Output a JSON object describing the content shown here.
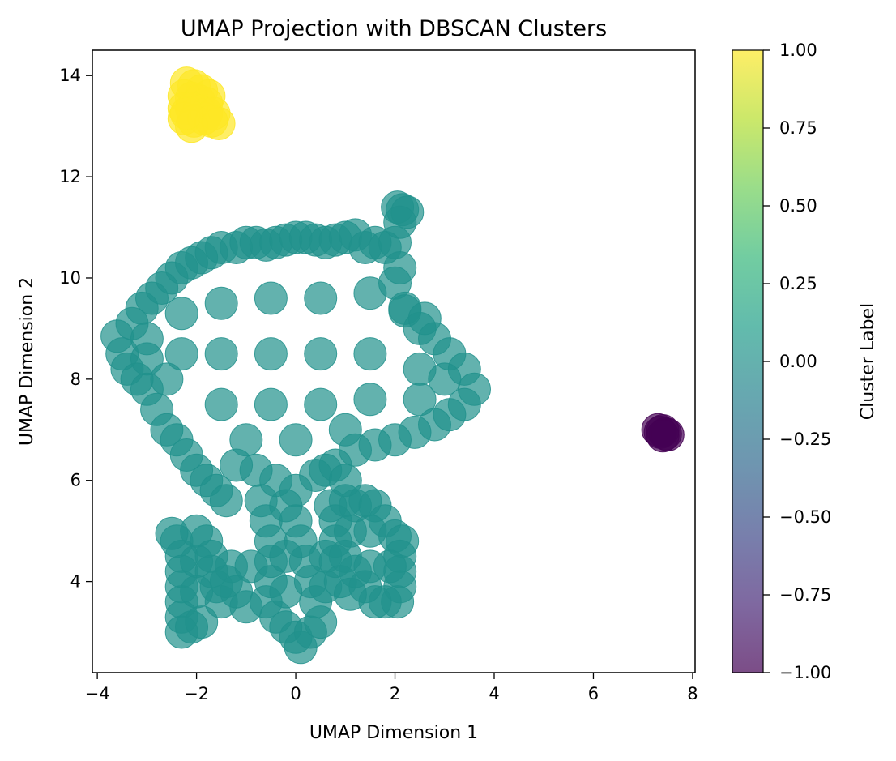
{
  "chart_data": {
    "type": "scatter",
    "title": "UMAP Projection with DBSCAN Clusters",
    "xlabel": "UMAP Dimension 1",
    "ylabel": "UMAP Dimension 2",
    "xlim": [
      -4.1,
      8.05
    ],
    "ylim": [
      2.2,
      14.5
    ],
    "xticks": [
      -4,
      -2,
      0,
      2,
      4,
      6,
      8
    ],
    "yticks": [
      4,
      6,
      8,
      10,
      12,
      14
    ],
    "grid": false,
    "legend": "none",
    "series": [
      {
        "cluster": 1,
        "color": "#fde725",
        "points": [
          [
            -2.2,
            13.85
          ],
          [
            -2.05,
            13.8
          ],
          [
            -1.9,
            13.7
          ],
          [
            -1.75,
            13.6
          ],
          [
            -2.25,
            13.6
          ],
          [
            -2.1,
            13.55
          ],
          [
            -1.95,
            13.5
          ],
          [
            -1.8,
            13.45
          ],
          [
            -2.25,
            13.35
          ],
          [
            -2.1,
            13.35
          ],
          [
            -1.95,
            13.3
          ],
          [
            -1.8,
            13.25
          ],
          [
            -2.25,
            13.15
          ],
          [
            -2.05,
            13.1
          ],
          [
            -1.85,
            13.15
          ],
          [
            -1.65,
            13.25
          ],
          [
            -1.55,
            13.05
          ],
          [
            -2.1,
            13.0
          ],
          [
            -1.7,
            13.1
          ],
          [
            -2.2,
            13.25
          ]
        ]
      },
      {
        "cluster": 0,
        "color": "#21918c",
        "points": [
          [
            -3.6,
            8.85
          ],
          [
            -3.5,
            8.5
          ],
          [
            -3.4,
            8.2
          ],
          [
            -3.3,
            9.1
          ],
          [
            -3.2,
            8.0
          ],
          [
            -3.1,
            9.4
          ],
          [
            -3.0,
            8.8
          ],
          [
            -3.0,
            7.8
          ],
          [
            -2.9,
            9.6
          ],
          [
            -2.8,
            7.4
          ],
          [
            -2.7,
            9.8
          ],
          [
            -2.6,
            7.0
          ],
          [
            -2.5,
            10.0
          ],
          [
            -2.4,
            6.8
          ],
          [
            -2.3,
            10.2
          ],
          [
            -2.2,
            6.5
          ],
          [
            -2.1,
            10.3
          ],
          [
            -2.0,
            6.2
          ],
          [
            -1.9,
            10.4
          ],
          [
            -1.8,
            6.0
          ],
          [
            -1.7,
            10.5
          ],
          [
            -1.6,
            5.8
          ],
          [
            -1.5,
            10.6
          ],
          [
            -1.4,
            5.6
          ],
          [
            -1.2,
            10.6
          ],
          [
            -1.0,
            10.7
          ],
          [
            -0.8,
            10.7
          ],
          [
            -0.6,
            10.65
          ],
          [
            -0.4,
            10.7
          ],
          [
            -0.2,
            10.75
          ],
          [
            0.0,
            10.8
          ],
          [
            0.2,
            10.8
          ],
          [
            0.4,
            10.75
          ],
          [
            0.6,
            10.7
          ],
          [
            0.8,
            10.75
          ],
          [
            1.0,
            10.8
          ],
          [
            1.2,
            10.85
          ],
          [
            1.4,
            10.6
          ],
          [
            1.6,
            10.7
          ],
          [
            1.8,
            10.6
          ],
          [
            2.0,
            10.7
          ],
          [
            2.1,
            10.2
          ],
          [
            2.0,
            9.9
          ],
          [
            2.2,
            9.4
          ],
          [
            2.5,
            9.0
          ],
          [
            2.8,
            8.8
          ],
          [
            3.1,
            8.5
          ],
          [
            3.4,
            8.2
          ],
          [
            3.6,
            7.8
          ],
          [
            3.4,
            7.5
          ],
          [
            3.1,
            7.3
          ],
          [
            2.8,
            7.1
          ],
          [
            2.4,
            6.95
          ],
          [
            2.0,
            6.8
          ],
          [
            1.6,
            6.7
          ],
          [
            1.2,
            6.6
          ],
          [
            0.8,
            6.3
          ],
          [
            0.4,
            6.1
          ],
          [
            0.0,
            5.8
          ],
          [
            -0.4,
            6.0
          ],
          [
            -0.8,
            6.2
          ],
          [
            -1.2,
            6.3
          ],
          [
            -2.3,
            8.5
          ],
          [
            -1.5,
            8.5
          ],
          [
            -0.5,
            8.5
          ],
          [
            0.5,
            8.5
          ],
          [
            1.5,
            8.5
          ],
          [
            2.5,
            8.2
          ],
          [
            -2.3,
            9.3
          ],
          [
            -1.5,
            9.5
          ],
          [
            -0.5,
            9.6
          ],
          [
            0.5,
            9.6
          ],
          [
            1.5,
            9.7
          ],
          [
            -1.5,
            7.5
          ],
          [
            -0.5,
            7.5
          ],
          [
            0.5,
            7.5
          ],
          [
            1.5,
            7.6
          ],
          [
            2.5,
            7.6
          ],
          [
            -1.0,
            6.8
          ],
          [
            0.0,
            6.8
          ],
          [
            1.0,
            7.0
          ],
          [
            -2.6,
            8.0
          ],
          [
            -3.0,
            8.4
          ],
          [
            3.0,
            8.0
          ],
          [
            2.05,
            11.4
          ],
          [
            2.15,
            11.35
          ],
          [
            2.25,
            11.3
          ],
          [
            2.1,
            11.1
          ],
          [
            2.2,
            9.35
          ],
          [
            2.6,
            9.2
          ],
          [
            -2.4,
            4.8
          ],
          [
            -2.3,
            4.5
          ],
          [
            -2.3,
            4.2
          ],
          [
            -2.3,
            3.9
          ],
          [
            -2.3,
            3.6
          ],
          [
            -2.3,
            3.3
          ],
          [
            -2.3,
            3.0
          ],
          [
            -2.1,
            3.1
          ],
          [
            -1.9,
            3.2
          ],
          [
            -1.8,
            4.8
          ],
          [
            -1.7,
            4.5
          ],
          [
            -1.7,
            4.2
          ],
          [
            -1.6,
            3.9
          ],
          [
            -1.5,
            3.6
          ],
          [
            -2.0,
            4.4
          ],
          [
            -2.0,
            3.8
          ],
          [
            -2.0,
            5.0
          ],
          [
            -2.5,
            4.95
          ],
          [
            -1.3,
            4.3
          ],
          [
            -1.2,
            3.8
          ],
          [
            -1.0,
            3.5
          ],
          [
            -0.9,
            4.3
          ],
          [
            -1.4,
            4.0
          ],
          [
            -0.7,
            5.6
          ],
          [
            -0.6,
            5.2
          ],
          [
            -0.5,
            4.8
          ],
          [
            -0.5,
            4.4
          ],
          [
            -0.5,
            4.0
          ],
          [
            -0.6,
            3.6
          ],
          [
            -0.4,
            3.3
          ],
          [
            -0.2,
            3.1
          ],
          [
            0.0,
            2.9
          ],
          [
            0.1,
            2.7
          ],
          [
            0.3,
            3.0
          ],
          [
            0.5,
            3.2
          ],
          [
            0.4,
            3.6
          ],
          [
            0.3,
            4.0
          ],
          [
            0.2,
            4.4
          ],
          [
            0.1,
            4.8
          ],
          [
            0.0,
            5.2
          ],
          [
            -0.2,
            5.5
          ],
          [
            -0.2,
            4.5
          ],
          [
            -0.2,
            3.8
          ],
          [
            0.6,
            4.5
          ],
          [
            0.6,
            3.9
          ],
          [
            0.7,
            5.5
          ],
          [
            0.8,
            5.2
          ],
          [
            0.8,
            4.8
          ],
          [
            0.8,
            4.4
          ],
          [
            0.9,
            4.0
          ],
          [
            1.0,
            5.6
          ],
          [
            1.2,
            5.5
          ],
          [
            1.4,
            5.6
          ],
          [
            1.6,
            5.5
          ],
          [
            1.8,
            5.2
          ],
          [
            2.0,
            4.9
          ],
          [
            2.15,
            4.8
          ],
          [
            2.1,
            4.5
          ],
          [
            2.1,
            4.2
          ],
          [
            2.1,
            3.9
          ],
          [
            2.05,
            3.6
          ],
          [
            1.8,
            3.6
          ],
          [
            1.6,
            3.6
          ],
          [
            1.4,
            3.9
          ],
          [
            1.2,
            4.2
          ],
          [
            1.0,
            4.5
          ],
          [
            1.1,
            5.0
          ],
          [
            1.5,
            5.0
          ],
          [
            1.9,
            4.3
          ],
          [
            1.5,
            4.3
          ],
          [
            1.1,
            3.75
          ],
          [
            0.6,
            6.2
          ],
          [
            1.0,
            6.0
          ]
        ]
      },
      {
        "cluster": -1,
        "color": "#440154",
        "points": [
          [
            7.3,
            7.0
          ],
          [
            7.35,
            6.95
          ],
          [
            7.4,
            6.98
          ],
          [
            7.45,
            6.92
          ],
          [
            7.5,
            6.9
          ],
          [
            7.4,
            6.88
          ]
        ]
      }
    ],
    "colorbar": {
      "label": "Cluster Label",
      "min": -1.0,
      "max": 1.0,
      "ticks": [
        "−1.00",
        "−0.75",
        "−0.50",
        "−0.25",
        "0.00",
        "0.25",
        "0.50",
        "0.75",
        "1.00"
      ],
      "colors": [
        "#440154",
        "#482878",
        "#3e4989",
        "#31688e",
        "#26828e",
        "#1f9e89",
        "#35b779",
        "#6ece58",
        "#b5de2b",
        "#fde725"
      ],
      "alpha": 0.7
    }
  }
}
